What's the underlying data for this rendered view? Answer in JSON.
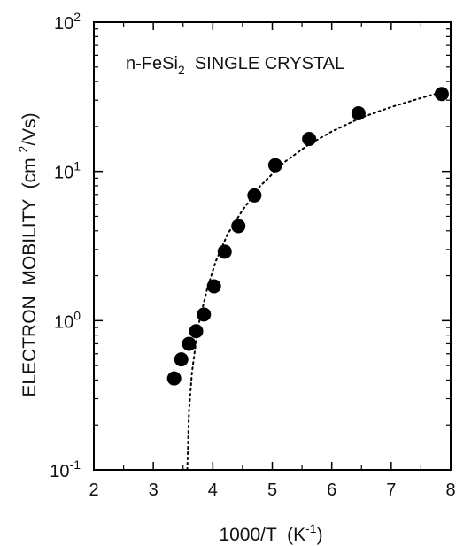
{
  "chart_data": {
    "type": "scatter",
    "title": "",
    "annotation": {
      "prefix": "n-FeSi",
      "subscript": "2",
      "suffix": "  SINGLE CRYSTAL"
    },
    "xlabel": {
      "main": "1000/T  (K",
      "sup": "-1",
      "end": ")"
    },
    "ylabel": {
      "main": "ELECTRON  MOBILITY  (cm ",
      "sup": "2",
      "end": "/Vs)"
    },
    "xlim": [
      2,
      8
    ],
    "ylim": [
      0.1,
      100
    ],
    "yscale": "log",
    "grid": false,
    "x_ticks": [
      {
        "value": 2,
        "label": "2"
      },
      {
        "value": 3,
        "label": "3"
      },
      {
        "value": 4,
        "label": "4"
      },
      {
        "value": 5,
        "label": "5"
      },
      {
        "value": 6,
        "label": "6"
      },
      {
        "value": 7,
        "label": "7"
      },
      {
        "value": 8,
        "label": "8"
      }
    ],
    "y_ticks": [
      {
        "value": 0.1,
        "base": "10",
        "exp": "-1"
      },
      {
        "value": 1,
        "base": "10",
        "exp": "0"
      },
      {
        "value": 10,
        "base": "10",
        "exp": "1"
      },
      {
        "value": 100,
        "base": "10",
        "exp": "2"
      }
    ],
    "series": [
      {
        "style": "markers",
        "color": "#000000",
        "points": [
          {
            "x": 3.35,
            "y": 0.41
          },
          {
            "x": 3.47,
            "y": 0.55
          },
          {
            "x": 3.6,
            "y": 0.7
          },
          {
            "x": 3.72,
            "y": 0.85
          },
          {
            "x": 3.85,
            "y": 1.1
          },
          {
            "x": 4.02,
            "y": 1.7
          },
          {
            "x": 4.2,
            "y": 2.9
          },
          {
            "x": 4.43,
            "y": 4.3
          },
          {
            "x": 4.7,
            "y": 6.9
          },
          {
            "x": 5.05,
            "y": 11
          },
          {
            "x": 5.62,
            "y": 16.5
          },
          {
            "x": 6.45,
            "y": 24.5
          },
          {
            "x": 7.85,
            "y": 33
          }
        ]
      },
      {
        "style": "dotted-line",
        "color": "#000000",
        "points": [
          {
            "x": 3.57,
            "y": 0.1
          },
          {
            "x": 3.6,
            "y": 0.25
          },
          {
            "x": 3.65,
            "y": 0.45
          },
          {
            "x": 3.75,
            "y": 0.9
          },
          {
            "x": 3.9,
            "y": 1.6
          },
          {
            "x": 4.05,
            "y": 2.5
          },
          {
            "x": 4.25,
            "y": 3.8
          },
          {
            "x": 4.5,
            "y": 5.5
          },
          {
            "x": 4.8,
            "y": 8
          },
          {
            "x": 5.2,
            "y": 11.5
          },
          {
            "x": 5.6,
            "y": 15
          },
          {
            "x": 6.0,
            "y": 18.5
          },
          {
            "x": 6.5,
            "y": 23
          },
          {
            "x": 7.0,
            "y": 27
          },
          {
            "x": 7.5,
            "y": 31
          },
          {
            "x": 7.85,
            "y": 34
          }
        ]
      }
    ]
  }
}
